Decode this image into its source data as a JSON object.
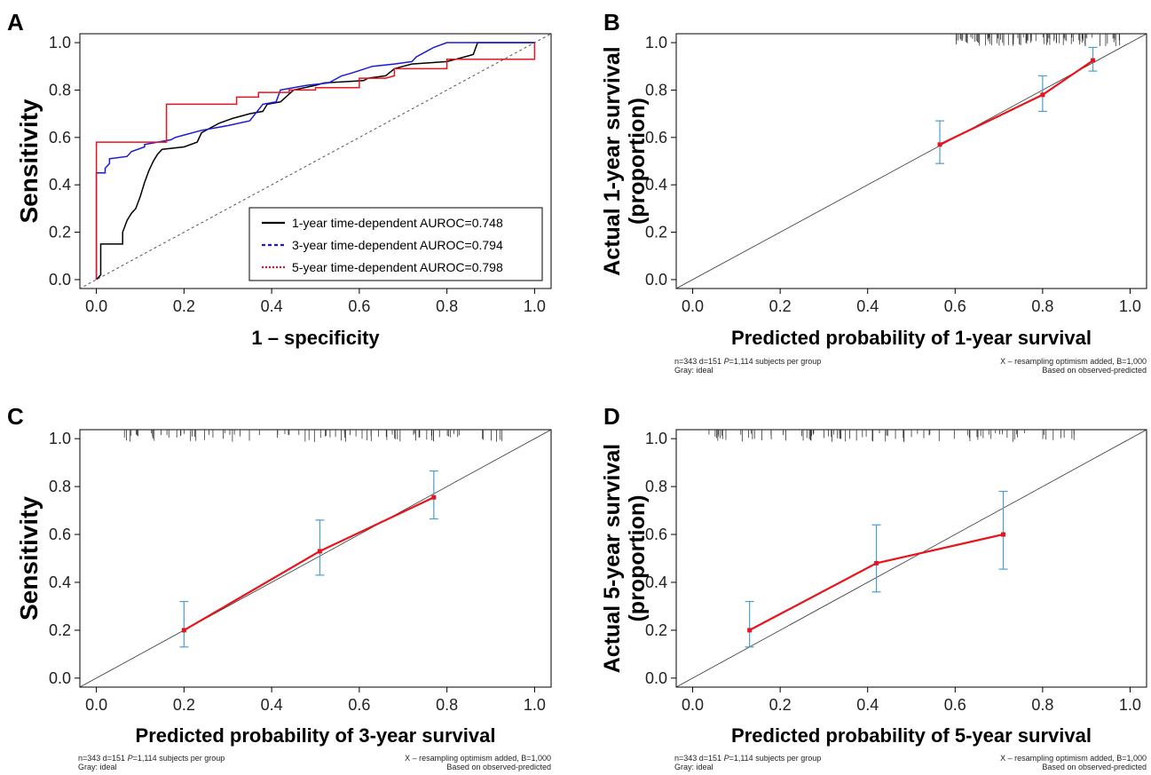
{
  "colors": {
    "black_series": "#000000",
    "blue_series": "#1a1ad6",
    "red_series": "#e8141c",
    "error_bar": "#4a9fd0",
    "ideal_line": "#333333",
    "rug": "#333333"
  },
  "chart_data": [
    {
      "panel": "A",
      "type": "line",
      "xlabel": "1 – specificity",
      "ylabel": "Sensitivity",
      "xlim": [
        0,
        1
      ],
      "ylim": [
        0,
        1
      ],
      "ticks": [
        "0.0",
        "0.2",
        "0.4",
        "0.6",
        "0.8",
        "1.0"
      ],
      "legend_position": "bottom-right",
      "diagonal": true,
      "series": [
        {
          "name": "1-year time-dependent AUROC=0.748",
          "color": "#000000",
          "style": "solid",
          "points": [
            [
              0,
              0
            ],
            [
              0.01,
              0.02
            ],
            [
              0.01,
              0.15
            ],
            [
              0.06,
              0.15
            ],
            [
              0.06,
              0.2
            ],
            [
              0.07,
              0.25
            ],
            [
              0.08,
              0.28
            ],
            [
              0.09,
              0.3
            ],
            [
              0.1,
              0.35
            ],
            [
              0.11,
              0.41
            ],
            [
              0.12,
              0.46
            ],
            [
              0.13,
              0.5
            ],
            [
              0.14,
              0.53
            ],
            [
              0.15,
              0.55
            ],
            [
              0.2,
              0.56
            ],
            [
              0.23,
              0.58
            ],
            [
              0.24,
              0.62
            ],
            [
              0.26,
              0.64
            ],
            [
              0.28,
              0.66
            ],
            [
              0.31,
              0.68
            ],
            [
              0.35,
              0.7
            ],
            [
              0.38,
              0.71
            ],
            [
              0.39,
              0.74
            ],
            [
              0.42,
              0.75
            ],
            [
              0.45,
              0.8
            ],
            [
              0.5,
              0.82
            ],
            [
              0.52,
              0.83
            ],
            [
              0.61,
              0.84
            ],
            [
              0.62,
              0.85
            ],
            [
              0.66,
              0.86
            ],
            [
              0.68,
              0.89
            ],
            [
              0.7,
              0.9
            ],
            [
              0.72,
              0.91
            ],
            [
              0.8,
              0.92
            ],
            [
              0.84,
              0.94
            ],
            [
              0.86,
              0.95
            ],
            [
              0.87,
              1.0
            ],
            [
              1.0,
              1.0
            ]
          ]
        },
        {
          "name": "3-year time-dependent AUROC=0.794",
          "color": "#1a1ad6",
          "style": "dashed",
          "points": [
            [
              0,
              0
            ],
            [
              0,
              0.45
            ],
            [
              0.02,
              0.45
            ],
            [
              0.02,
              0.47
            ],
            [
              0.03,
              0.49
            ],
            [
              0.03,
              0.51
            ],
            [
              0.07,
              0.52
            ],
            [
              0.08,
              0.54
            ],
            [
              0.11,
              0.56
            ],
            [
              0.11,
              0.57
            ],
            [
              0.14,
              0.58
            ],
            [
              0.17,
              0.59
            ],
            [
              0.18,
              0.6
            ],
            [
              0.2,
              0.61
            ],
            [
              0.24,
              0.63
            ],
            [
              0.3,
              0.65
            ],
            [
              0.35,
              0.67
            ],
            [
              0.38,
              0.74
            ],
            [
              0.41,
              0.75
            ],
            [
              0.42,
              0.8
            ],
            [
              0.45,
              0.81
            ],
            [
              0.48,
              0.82
            ],
            [
              0.53,
              0.83
            ],
            [
              0.56,
              0.86
            ],
            [
              0.58,
              0.87
            ],
            [
              0.63,
              0.9
            ],
            [
              0.68,
              0.91
            ],
            [
              0.72,
              0.92
            ],
            [
              0.73,
              0.94
            ],
            [
              0.75,
              0.96
            ],
            [
              0.77,
              0.98
            ],
            [
              0.8,
              1.0
            ],
            [
              1.0,
              1.0
            ]
          ]
        },
        {
          "name": "5-year time-dependent AUROC=0.798",
          "color": "#e8141c",
          "style": "dotted",
          "points": [
            [
              0,
              0
            ],
            [
              0,
              0.58
            ],
            [
              0.16,
              0.58
            ],
            [
              0.16,
              0.74
            ],
            [
              0.32,
              0.74
            ],
            [
              0.32,
              0.77
            ],
            [
              0.37,
              0.77
            ],
            [
              0.37,
              0.79
            ],
            [
              0.44,
              0.79
            ],
            [
              0.44,
              0.8
            ],
            [
              0.5,
              0.8
            ],
            [
              0.5,
              0.81
            ],
            [
              0.6,
              0.81
            ],
            [
              0.6,
              0.85
            ],
            [
              0.66,
              0.85
            ],
            [
              0.68,
              0.86
            ],
            [
              0.68,
              0.89
            ],
            [
              0.8,
              0.89
            ],
            [
              0.8,
              0.93
            ],
            [
              1.0,
              0.93
            ],
            [
              1.0,
              1.0
            ]
          ]
        }
      ]
    },
    {
      "panel": "B",
      "type": "line",
      "subtype": "calibration",
      "xlabel": "Predicted probability of 1-year survival",
      "ylabel": [
        "Actual 1-year survival",
        "(proportion)"
      ],
      "xlim": [
        0,
        1
      ],
      "ylim": [
        0,
        1
      ],
      "ticks": [
        "0.0",
        "0.2",
        "0.4",
        "0.6",
        "0.8",
        "1.0"
      ],
      "points": [
        {
          "x": 0.565,
          "y": 0.57,
          "lo": 0.49,
          "hi": 0.67
        },
        {
          "x": 0.8,
          "y": 0.78,
          "lo": 0.71,
          "hi": 0.86
        },
        {
          "x": 0.915,
          "y": 0.925,
          "lo": 0.88,
          "hi": 0.98
        }
      ],
      "rug_range": [
        0.6,
        0.98
      ],
      "footnotes": {
        "left_1": "n=343 d=151",
        "left_p": "P",
        "left_1b": "=1,114 subjects per group",
        "left_2": "Gray: ideal",
        "right_1": "X – resampling optimism added, B=1,000",
        "right_2": "Based on observed-predicted"
      }
    },
    {
      "panel": "C",
      "type": "line",
      "subtype": "calibration",
      "xlabel": "Predicted probability of 3-year survival",
      "ylabel": [
        "Sensitivity"
      ],
      "xlim": [
        0,
        1
      ],
      "ylim": [
        0,
        1
      ],
      "ticks": [
        "0.0",
        "0.2",
        "0.4",
        "0.6",
        "0.8",
        "1.0"
      ],
      "points": [
        {
          "x": 0.2,
          "y": 0.2,
          "lo": 0.13,
          "hi": 0.32
        },
        {
          "x": 0.51,
          "y": 0.53,
          "lo": 0.43,
          "hi": 0.66
        },
        {
          "x": 0.77,
          "y": 0.755,
          "lo": 0.665,
          "hi": 0.865
        }
      ],
      "rug_range": [
        0.05,
        0.95
      ],
      "footnotes": {
        "left_1": "n=343 d=151",
        "left_p": "P",
        "left_1b": "=1,114 subjects per group",
        "left_2": "Gray: ideal",
        "right_1": "X – resampling optimism added, B=1,000",
        "right_2": "Based on observed-predicted"
      }
    },
    {
      "panel": "D",
      "type": "line",
      "subtype": "calibration",
      "xlabel": "Predicted probability of 5-year survival",
      "ylabel": [
        "Actual 5-year survival",
        "(proportion)"
      ],
      "xlim": [
        0,
        1
      ],
      "ylim": [
        0,
        1
      ],
      "ticks": [
        "0.0",
        "0.2",
        "0.4",
        "0.6",
        "0.8",
        "1.0"
      ],
      "points": [
        {
          "x": 0.13,
          "y": 0.2,
          "lo": 0.13,
          "hi": 0.32
        },
        {
          "x": 0.42,
          "y": 0.48,
          "lo": 0.36,
          "hi": 0.64
        },
        {
          "x": 0.71,
          "y": 0.6,
          "lo": 0.455,
          "hi": 0.78
        }
      ],
      "rug_range": [
        0.02,
        0.88
      ],
      "footnotes": {
        "left_1": "n=343 d=151",
        "left_p": "P",
        "left_1b": "=1,114 subjects per group",
        "left_2": "Gray: ideal",
        "right_1": "X – resampling optimism added, B=1,000",
        "right_2": "Based on observed-predicted"
      }
    }
  ]
}
